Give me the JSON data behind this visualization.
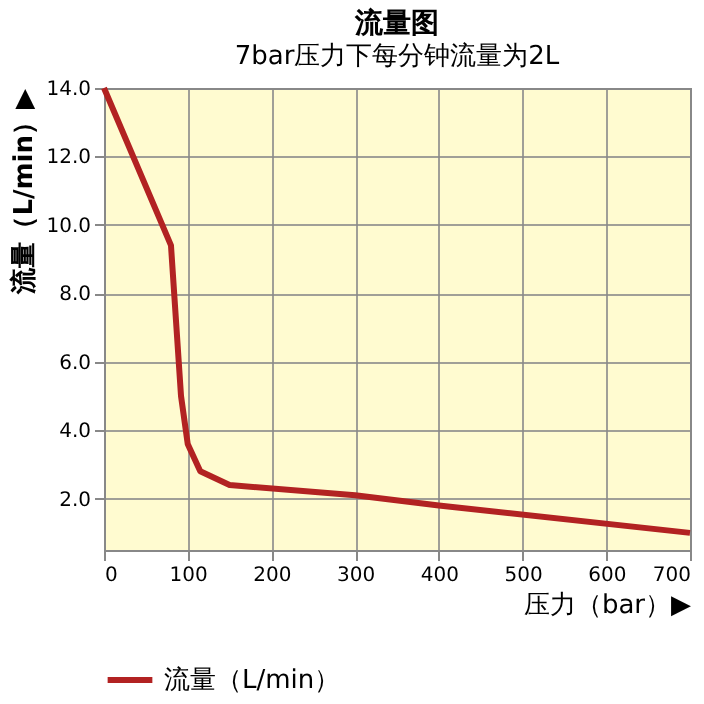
{
  "chart_data": {
    "type": "line",
    "title": "流量图",
    "subtitle": "7bar压力下每分钟流量为2L",
    "xlabel": "压力（bar）▶",
    "ylabel": "流量（L/min）▶",
    "x": [
      0,
      80,
      92,
      100,
      115,
      150,
      300,
      400,
      700
    ],
    "series": [
      {
        "name": "流量（L/min）",
        "color": "#b22222",
        "values": [
          14.0,
          9.4,
          5.0,
          3.6,
          2.8,
          2.4,
          2.1,
          1.8,
          1.0
        ]
      }
    ],
    "xlim": [
      0,
      700
    ],
    "ylim": [
      0.5,
      14
    ],
    "xticks": [
      0,
      100,
      200,
      300,
      400,
      500,
      600,
      700
    ],
    "yticks": [
      {
        "value": 2,
        "label": "2.0"
      },
      {
        "value": 4,
        "label": "4.0"
      },
      {
        "value": 6,
        "label": "6.0"
      },
      {
        "value": 8,
        "label": "8.0"
      },
      {
        "value": 10,
        "label": "10.0"
      },
      {
        "value": 12,
        "label": "12.0"
      },
      {
        "value": 14,
        "label": "14.0"
      }
    ],
    "grid": true,
    "legend": "bottom",
    "marker": "none",
    "line_style": "solid"
  }
}
